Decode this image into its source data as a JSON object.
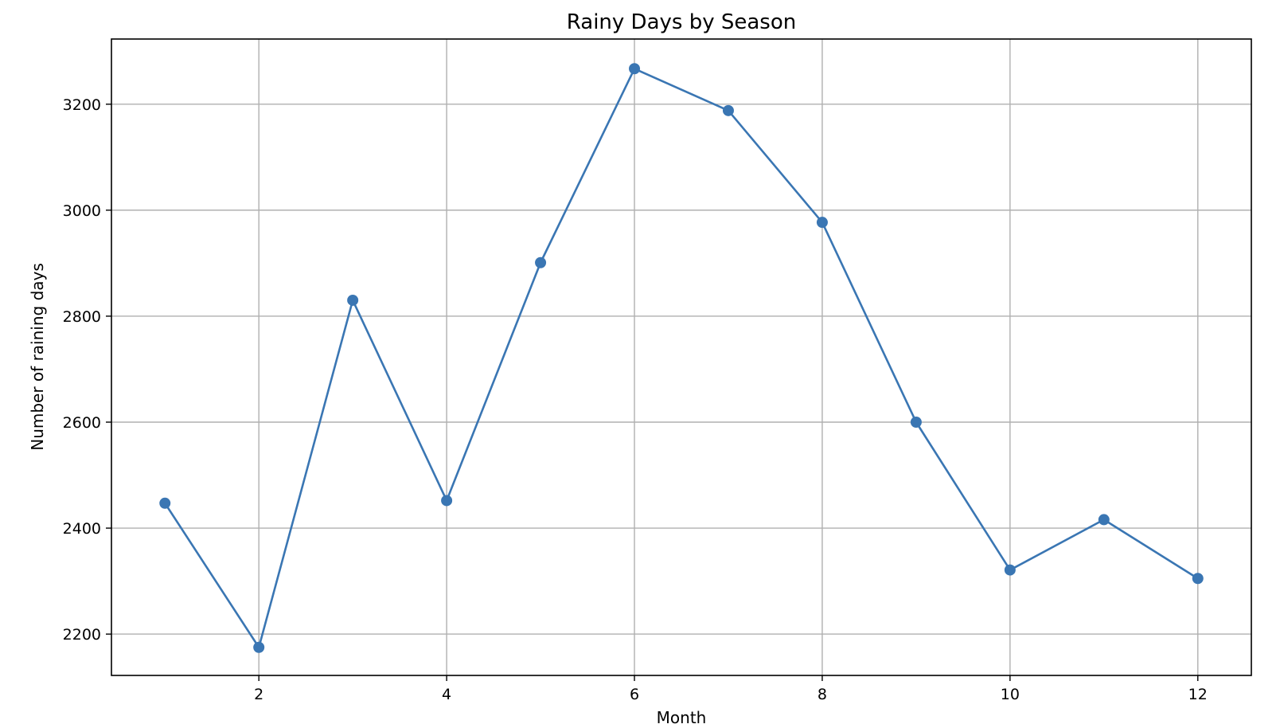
{
  "chart_data": {
    "type": "line",
    "title": "Rainy Days by Season",
    "xlabel": "Month",
    "ylabel": "Number of raining days",
    "x": [
      1,
      2,
      3,
      4,
      5,
      6,
      7,
      8,
      9,
      10,
      11,
      12
    ],
    "series": [
      {
        "values": [
          2447,
          2175,
          2830,
          2452,
          2901,
          3267,
          3188,
          2977,
          2600,
          2321,
          2416,
          2305
        ],
        "color": "#3a76b3"
      }
    ],
    "xlim": [
      0.43,
      12.57
    ],
    "ylim": [
      2122,
      3323
    ],
    "xticks": [
      2,
      4,
      6,
      8,
      10,
      12
    ],
    "yticks": [
      2200,
      2400,
      2600,
      2800,
      3000,
      3200
    ],
    "grid": true,
    "marker": "circle"
  }
}
